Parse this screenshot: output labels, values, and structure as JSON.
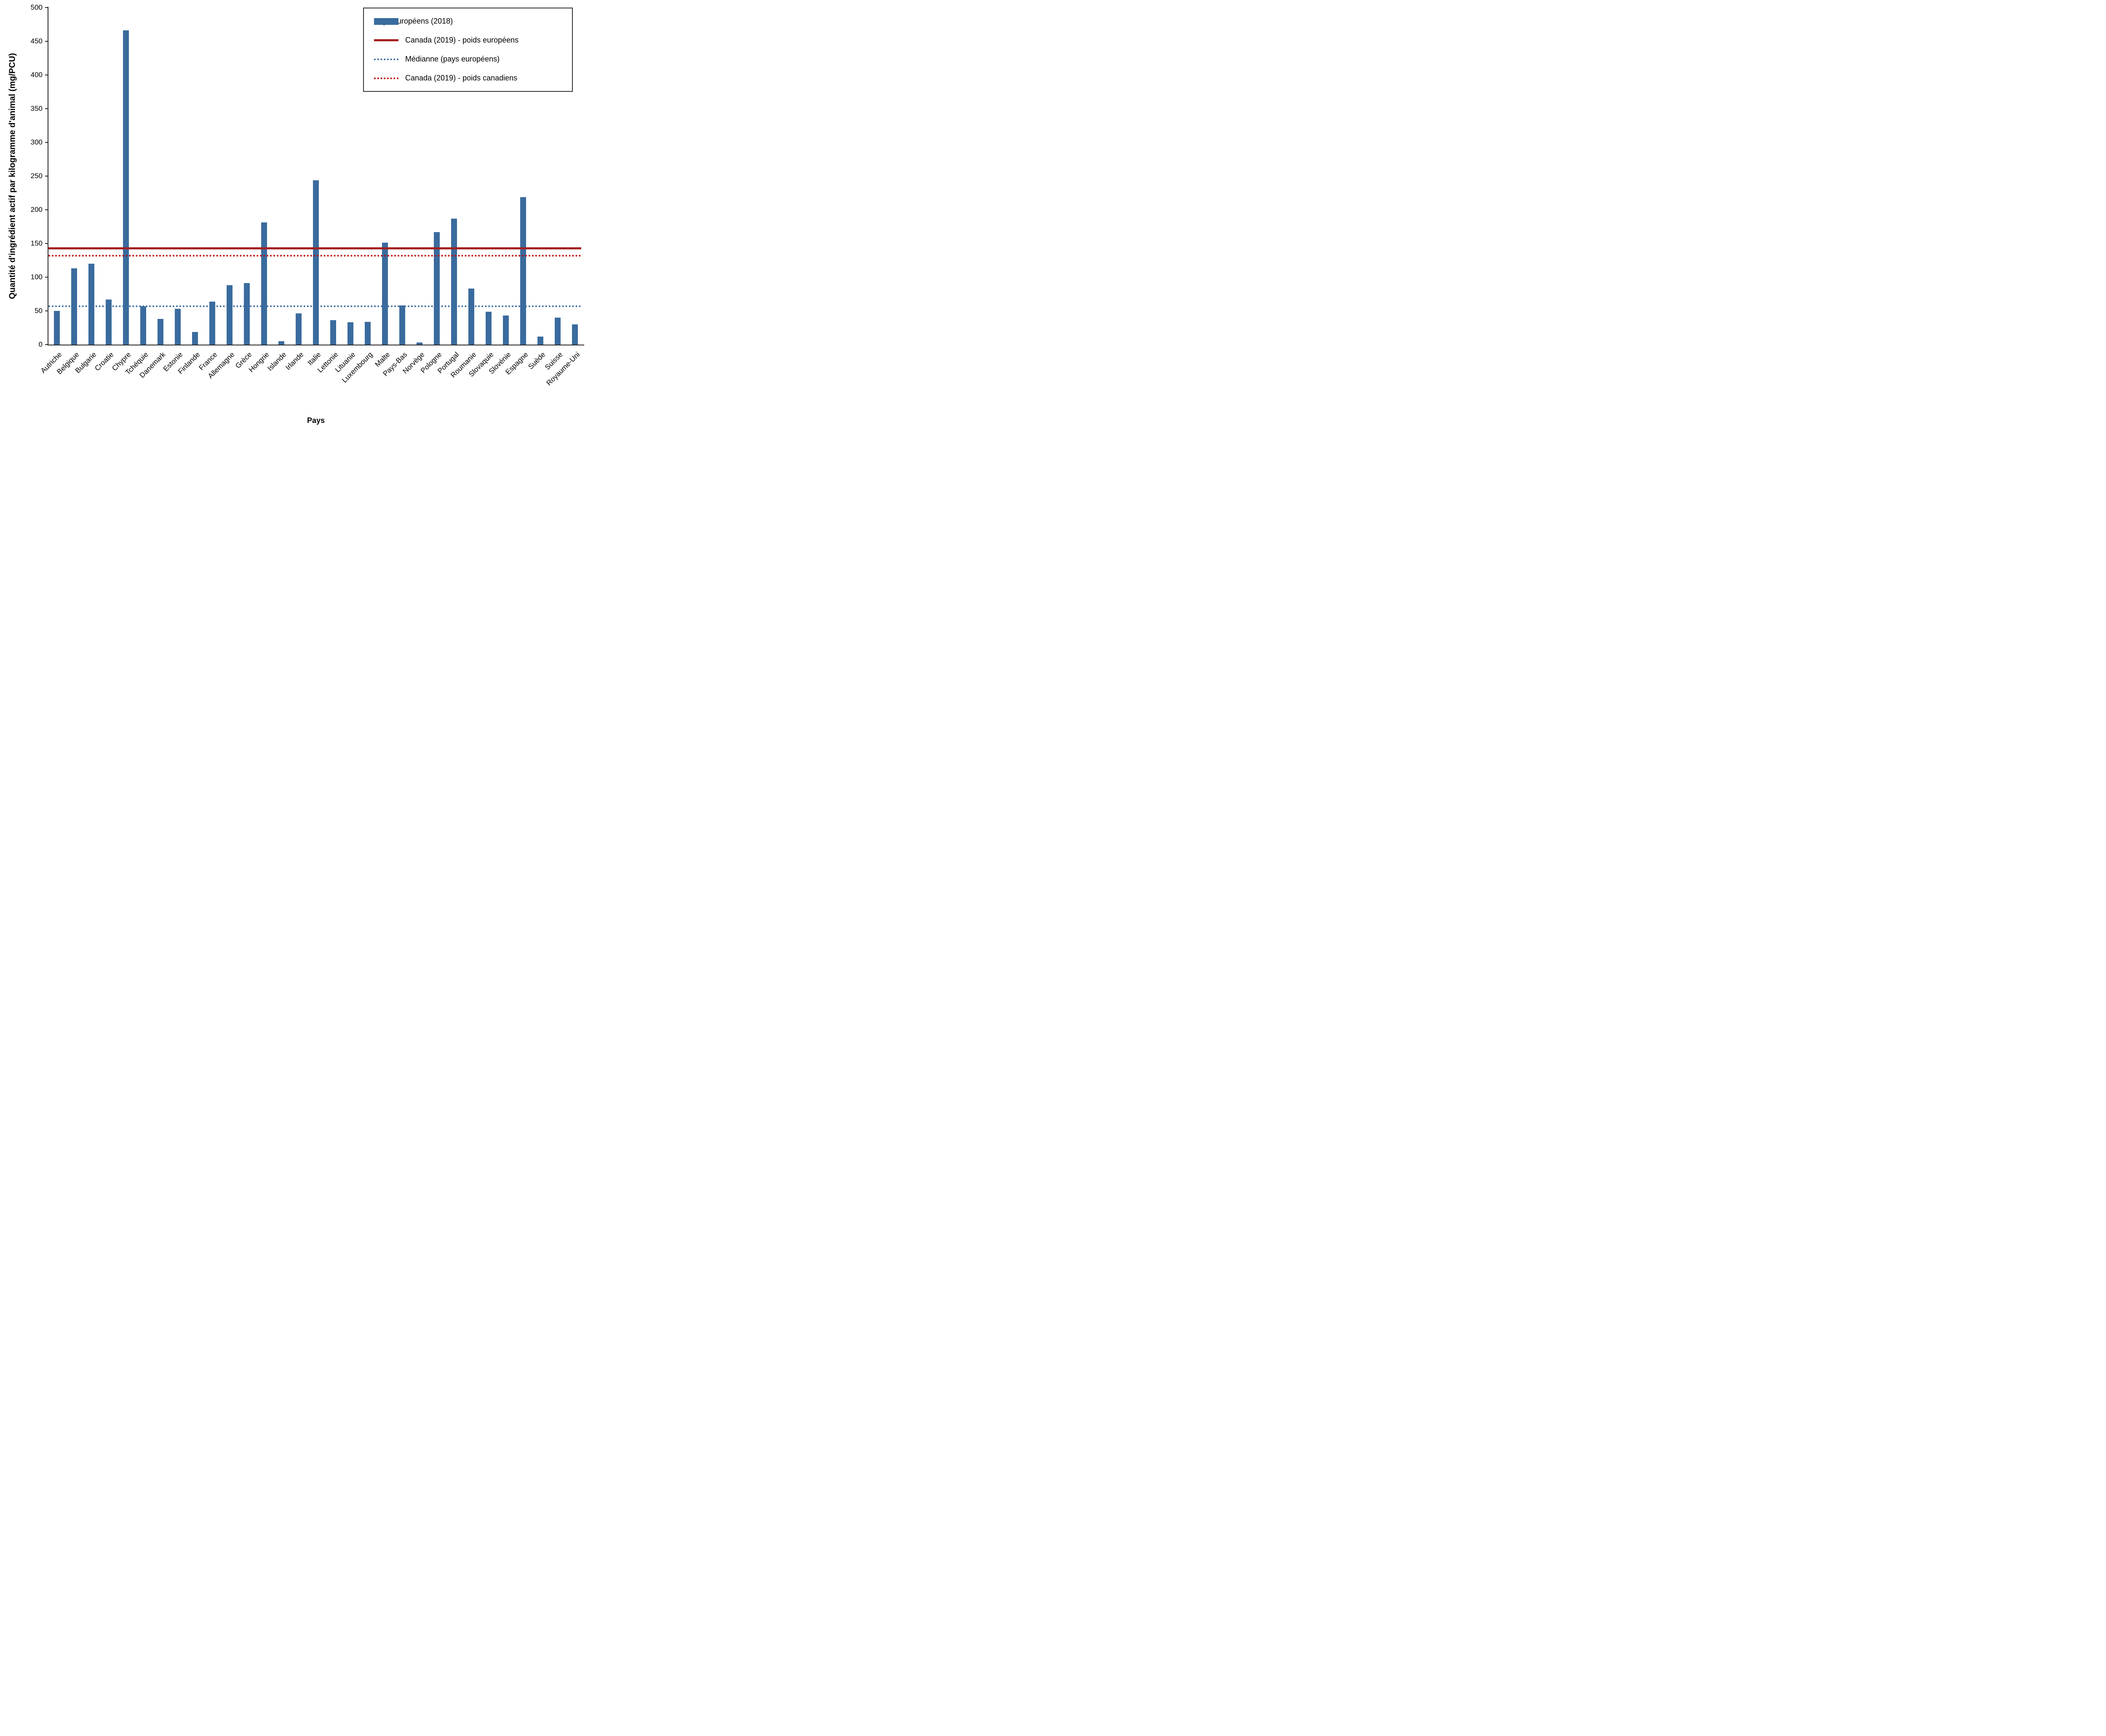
{
  "chart_data": {
    "type": "bar",
    "title": "",
    "xlabel": "Pays",
    "ylabel": "Quantité d'ingrédient actif par kilogramme d'animal  (mg/PCU)",
    "ylim": [
      0,
      500
    ],
    "ytick_step": 50,
    "grid": false,
    "legend_position": "top-right",
    "bar_color": "#3A6B9E",
    "axis_color": "#262626",
    "categories": [
      "Autriche",
      "Belgique",
      "Bulgarie",
      "Croatie",
      "Chypre",
      "Tchéquie",
      "Danemark",
      "Estonie",
      "Finlande",
      "France",
      "Allemagne",
      "Grèce",
      "Hongrie",
      "Islande",
      "Irlande",
      "Italie",
      "Lettonie",
      "Lituanie",
      "Luxembourg",
      "Malte",
      "Pays-Bas",
      "Norvège",
      "Pologne",
      "Portugal",
      "Roumanie",
      "Slovaquie",
      "Slovénie",
      "Espagne",
      "Suède",
      "Suisse",
      "Royaume-Uni"
    ],
    "series_name": "Pays européens (2018)",
    "values": [
      50,
      113,
      120,
      67,
      466,
      57,
      38,
      53,
      19,
      64,
      88,
      91,
      181,
      5,
      46,
      244,
      36,
      33,
      34,
      151,
      58,
      3,
      167,
      187,
      83,
      49,
      43,
      219,
      12,
      40,
      30
    ],
    "reference_lines": [
      {
        "label": "Canada (2019) - poids européens",
        "value": 143,
        "style": "solid",
        "color": "#A32020"
      },
      {
        "label": "Médianne (pays européens)",
        "value": 57,
        "style": "dotted",
        "color": "#3A6B9E"
      },
      {
        "label": "Canada (2019) - poids canadiens",
        "value": 132,
        "style": "dotted",
        "color": "#C00000"
      }
    ],
    "legend": [
      {
        "label": "Pays européens (2018)",
        "swatch": "bar",
        "color": "#3A6B9E"
      },
      {
        "label": "Canada (2019) - poids européens",
        "swatch": "solid-line",
        "color": "#A32020"
      },
      {
        "label": "Médianne (pays européens)",
        "swatch": "dotted-line",
        "color": "#3A6B9E"
      },
      {
        "label": "Canada (2019) - poids canadiens",
        "swatch": "dotted-line",
        "color": "#C00000"
      }
    ]
  }
}
